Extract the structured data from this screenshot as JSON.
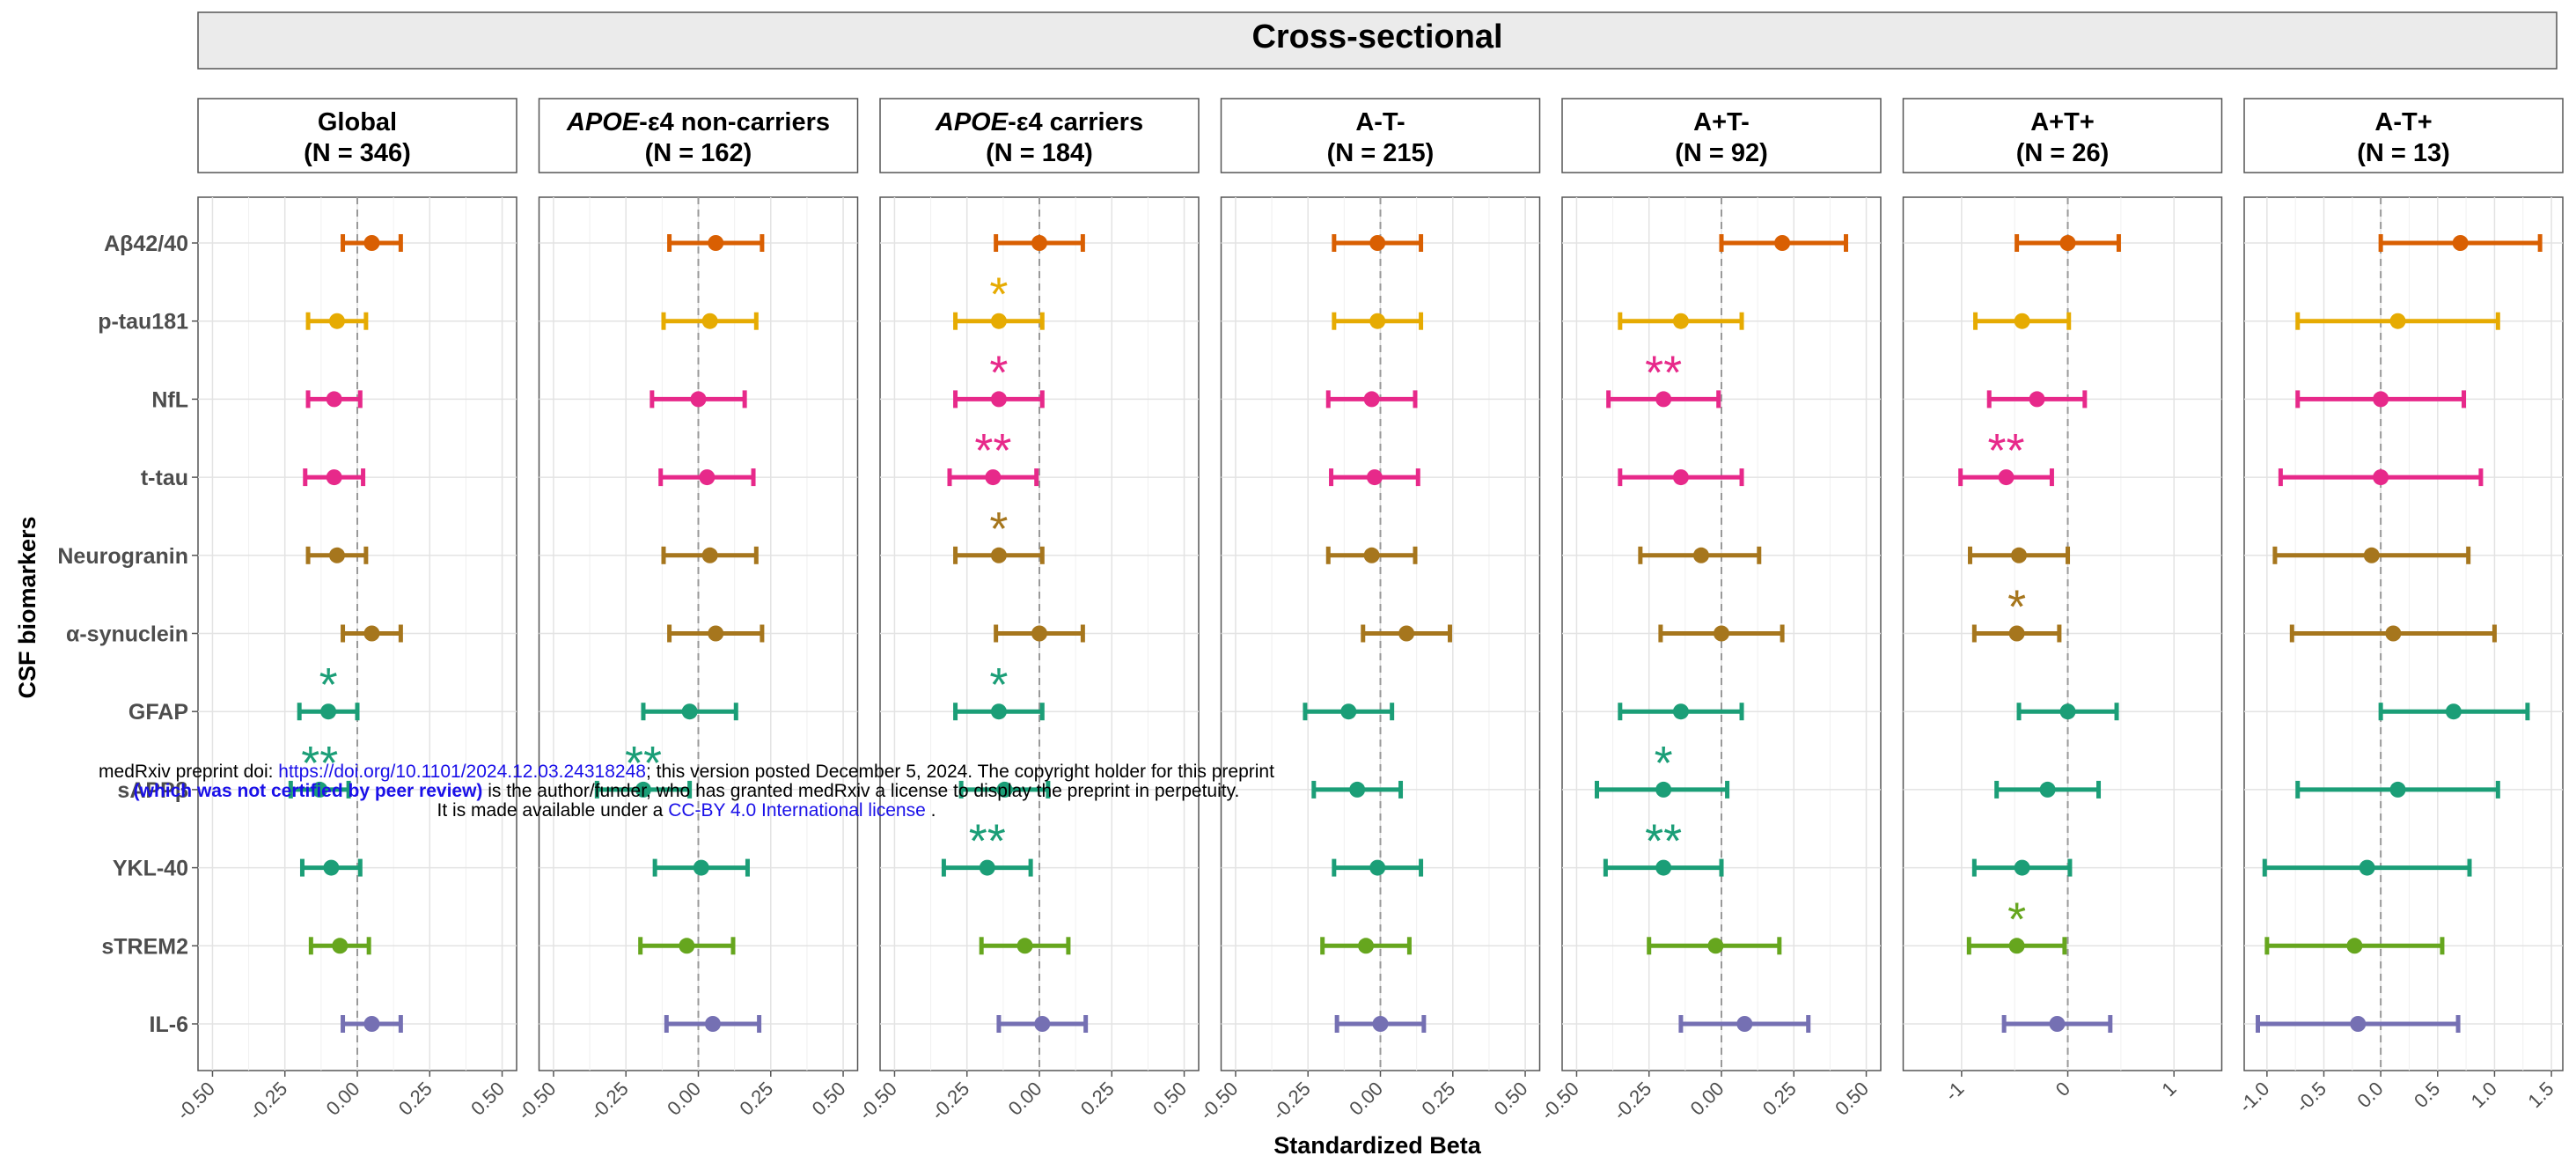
{
  "chart_data": {
    "type": "forest",
    "title": "Cross-sectional",
    "xlabel": "Standardized Beta",
    "ylabel": "CSF biomarkers",
    "grid": true,
    "biomarkers": [
      "Aβ42/40",
      "p-tau181",
      "NfL",
      "t-tau",
      "Neurogranin",
      "α-synuclein",
      "GFAP",
      "sAPPβ",
      "YKL-40",
      "sTREM2",
      "IL-6"
    ],
    "colors": [
      "#d95f02",
      "#e6ab02",
      "#e7298a",
      "#e7298a",
      "#a6761d",
      "#a6761d",
      "#1b9e77",
      "#1b9e77",
      "#1b9e77",
      "#66a61e",
      "#7570b3"
    ],
    "panels": [
      {
        "label_prefix": "",
        "label_italic": "",
        "label_rest": "Global",
        "n_label": "(N = 346)",
        "xlim": [
          -0.55,
          0.55
        ],
        "ticks": [
          -0.5,
          -0.25,
          0,
          0.25,
          0.5
        ],
        "tick_labels": [
          "-0.50",
          "-0.25",
          "0.00",
          "0.25",
          "0.50"
        ],
        "est": [
          0.05,
          -0.07,
          -0.08,
          -0.08,
          -0.07,
          0.05,
          -0.1,
          -0.13,
          -0.09,
          -0.06,
          0.05
        ],
        "lo": [
          -0.05,
          -0.17,
          -0.17,
          -0.18,
          -0.17,
          -0.05,
          -0.2,
          -0.23,
          -0.19,
          -0.16,
          -0.05
        ],
        "hi": [
          0.15,
          0.03,
          0.01,
          0.02,
          0.03,
          0.15,
          0.0,
          -0.03,
          0.01,
          0.04,
          0.15
        ],
        "sig": [
          "",
          "",
          "",
          "",
          "",
          "",
          "*",
          "**",
          "",
          "",
          ""
        ]
      },
      {
        "label_prefix": "",
        "label_italic": "APOE",
        "label_rest": "-ε4 non-carriers",
        "n_label": "(N = 162)",
        "xlim": [
          -0.55,
          0.55
        ],
        "ticks": [
          -0.5,
          -0.25,
          0,
          0.25,
          0.5
        ],
        "tick_labels": [
          "-0.50",
          "-0.25",
          "0.00",
          "0.25",
          "0.50"
        ],
        "est": [
          0.06,
          0.04,
          0.0,
          0.03,
          0.04,
          0.06,
          -0.03,
          -0.19,
          0.01,
          -0.04,
          0.05
        ],
        "lo": [
          -0.1,
          -0.12,
          -0.16,
          -0.13,
          -0.12,
          -0.1,
          -0.19,
          -0.35,
          -0.15,
          -0.2,
          -0.11
        ],
        "hi": [
          0.22,
          0.2,
          0.16,
          0.19,
          0.2,
          0.22,
          0.13,
          -0.03,
          0.17,
          0.12,
          0.21
        ],
        "sig": [
          "",
          "",
          "",
          "",
          "",
          "",
          "",
          "**",
          "",
          "",
          ""
        ]
      },
      {
        "label_prefix": "",
        "label_italic": "APOE",
        "label_rest": "-ε4 carriers",
        "n_label": "(N = 184)",
        "xlim": [
          -0.55,
          0.55
        ],
        "ticks": [
          -0.5,
          -0.25,
          0,
          0.25,
          0.5
        ],
        "tick_labels": [
          "-0.50",
          "-0.25",
          "0.00",
          "0.25",
          "0.50"
        ],
        "est": [
          0.0,
          -0.14,
          -0.14,
          -0.16,
          -0.14,
          0.0,
          -0.14,
          -0.12,
          -0.18,
          -0.05,
          0.01
        ],
        "lo": [
          -0.15,
          -0.29,
          -0.29,
          -0.31,
          -0.29,
          -0.15,
          -0.29,
          -0.27,
          -0.33,
          -0.2,
          -0.14
        ],
        "hi": [
          0.15,
          0.01,
          0.01,
          -0.01,
          0.01,
          0.15,
          0.01,
          0.03,
          -0.03,
          0.1,
          0.16
        ],
        "sig": [
          "",
          "*",
          "*",
          "**",
          "*",
          "",
          "*",
          "",
          "**",
          "",
          ""
        ]
      },
      {
        "label_prefix": "",
        "label_italic": "",
        "label_rest": "A-T-",
        "n_label": "(N = 215)",
        "xlim": [
          -0.55,
          0.55
        ],
        "ticks": [
          -0.5,
          -0.25,
          0,
          0.25,
          0.5
        ],
        "tick_labels": [
          "-0.50",
          "-0.25",
          "0.00",
          "0.25",
          "0.50"
        ],
        "est": [
          -0.01,
          -0.01,
          -0.03,
          -0.02,
          -0.03,
          0.09,
          -0.11,
          -0.08,
          -0.01,
          -0.05,
          0.0
        ],
        "lo": [
          -0.16,
          -0.16,
          -0.18,
          -0.17,
          -0.18,
          -0.06,
          -0.26,
          -0.23,
          -0.16,
          -0.2,
          -0.15
        ],
        "hi": [
          0.14,
          0.14,
          0.12,
          0.13,
          0.12,
          0.24,
          0.04,
          0.07,
          0.14,
          0.1,
          0.15
        ],
        "sig": [
          "",
          "",
          "",
          "",
          "",
          "",
          "",
          "",
          "",
          "",
          ""
        ]
      },
      {
        "label_prefix": "",
        "label_italic": "",
        "label_rest": "A+T-",
        "n_label": "(N = 92)",
        "xlim": [
          -0.55,
          0.55
        ],
        "ticks": [
          -0.5,
          -0.25,
          0,
          0.25,
          0.5
        ],
        "tick_labels": [
          "-0.50",
          "-0.25",
          "0.00",
          "0.25",
          "0.50"
        ],
        "est": [
          0.21,
          -0.14,
          -0.2,
          -0.14,
          -0.07,
          0.0,
          -0.14,
          -0.2,
          -0.2,
          -0.02,
          0.08
        ],
        "lo": [
          0.0,
          -0.35,
          -0.39,
          -0.35,
          -0.28,
          -0.21,
          -0.35,
          -0.43,
          -0.4,
          -0.25,
          -0.14
        ],
        "hi": [
          0.43,
          0.07,
          -0.01,
          0.07,
          0.13,
          0.21,
          0.07,
          0.02,
          0.0,
          0.2,
          0.3
        ],
        "sig": [
          "",
          "",
          "**",
          "",
          "",
          "",
          "",
          "*",
          "**",
          "",
          ""
        ]
      },
      {
        "label_prefix": "",
        "label_italic": "",
        "label_rest": "A+T+",
        "n_label": "(N = 26)",
        "xlim": [
          -1.55,
          1.45
        ],
        "ticks": [
          -1,
          0,
          1
        ],
        "tick_labels": [
          "-1",
          "0",
          "1"
        ],
        "est": [
          0.0,
          -0.43,
          -0.29,
          -0.58,
          -0.46,
          -0.48,
          0.0,
          -0.19,
          -0.43,
          -0.48,
          -0.1
        ],
        "lo": [
          -0.48,
          -0.87,
          -0.74,
          -1.01,
          -0.92,
          -0.88,
          -0.46,
          -0.67,
          -0.88,
          -0.93,
          -0.6
        ],
        "hi": [
          0.48,
          0.01,
          0.16,
          -0.15,
          0.0,
          -0.08,
          0.46,
          0.29,
          0.02,
          -0.03,
          0.4
        ],
        "sig": [
          "",
          "",
          "",
          "**",
          "",
          "*",
          "",
          "",
          "",
          "*",
          ""
        ]
      },
      {
        "label_prefix": "",
        "label_italic": "",
        "label_rest": "A-T+",
        "n_label": "(N = 13)",
        "xlim": [
          -1.2,
          1.6
        ],
        "ticks": [
          -1.0,
          -0.5,
          0,
          0.5,
          1.0,
          1.5
        ],
        "tick_labels": [
          "-1.0",
          "-0.5",
          "0.0",
          "0.5",
          "1.0",
          "1.5"
        ],
        "est": [
          0.7,
          0.15,
          0.0,
          0.0,
          -0.08,
          0.11,
          0.64,
          0.15,
          -0.12,
          -0.23,
          -0.2
        ],
        "lo": [
          0.0,
          -0.73,
          -0.73,
          -0.88,
          -0.93,
          -0.78,
          0.0,
          -0.73,
          -1.02,
          -1.0,
          -1.08
        ],
        "hi": [
          1.4,
          1.03,
          0.73,
          0.88,
          0.77,
          1.0,
          1.29,
          1.03,
          0.78,
          0.54,
          0.68
        ],
        "sig": [
          "",
          "",
          "",
          "",
          "",
          "",
          "",
          "",
          "",
          "",
          ""
        ]
      }
    ]
  },
  "watermark": {
    "line1_pre": "medRxiv preprint doi: ",
    "line1_link": "https://doi.org/10.1101/2024.12.03.24318248",
    "line1_post": "; this version posted December 5, 2024. The copyright holder for this preprint",
    "line2_bold": "(which was not certified by peer review)",
    "line2_post": " is the author/funder, who has granted medRxiv a license to display the preprint in perpetuity.",
    "line3_pre": "It is made available under a ",
    "line3_link": "CC-BY 4.0 International license",
    "line3_post": " ."
  }
}
